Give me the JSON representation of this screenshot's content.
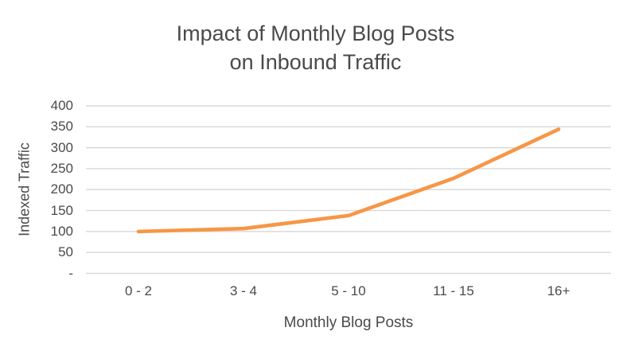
{
  "chart_data": {
    "type": "line",
    "title": "Impact of Monthly Blog Posts on Inbound Traffic",
    "title_lines": [
      "Impact of Monthly Blog Posts",
      "on Inbound Traffic"
    ],
    "xlabel": "Monthly Blog Posts",
    "ylabel": "Indexed Traffic",
    "categories": [
      "0 - 2",
      "3 - 4",
      "5 - 10",
      "11 - 15",
      "16+"
    ],
    "series": [
      {
        "name": "Indexed Traffic",
        "values": [
          100,
          107,
          138,
          227,
          344
        ]
      }
    ],
    "ylim": [
      0,
      400
    ],
    "ytick_step": 50,
    "ytick_labels": [
      "-",
      "50",
      "100",
      "150",
      "200",
      "250",
      "300",
      "350",
      "400"
    ],
    "grid": true,
    "legend": "none",
    "colors": {
      "line": "#F79646",
      "gridline": "#D9D9D9",
      "text": "#4A4A4A"
    }
  }
}
